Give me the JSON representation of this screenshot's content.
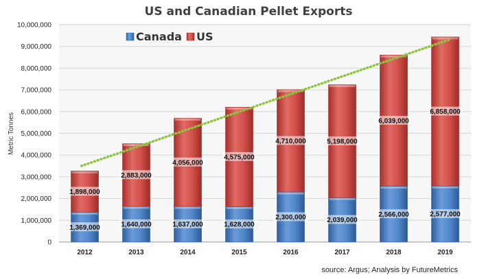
{
  "chart_data": {
    "type": "bar",
    "stacked": true,
    "title": "US and Canadian Pellet Exports",
    "ylabel": "Metric Tonnes",
    "xlabel": "",
    "categories": [
      "2012",
      "2013",
      "2014",
      "2015",
      "2016",
      "2017",
      "2018",
      "2019"
    ],
    "series": [
      {
        "name": "Canada",
        "color": "#4a7fc1",
        "values": [
          1369000,
          1640000,
          1637000,
          1628000,
          2300000,
          2039000,
          2566000,
          2577000
        ],
        "labels": [
          "1,369,000",
          "1,640,000",
          "1,637,000",
          "1,628,000",
          "2,300,000",
          "2,039,000",
          "2,566,000",
          "2,577,000"
        ]
      },
      {
        "name": "US",
        "color": "#c9443f",
        "values": [
          1898000,
          2883000,
          4056000,
          4575000,
          4710000,
          5198000,
          6039000,
          6858000
        ],
        "labels": [
          "1,898,000",
          "2,883,000",
          "4,056,000",
          "4,575,000",
          "4,710,000",
          "5,198,000",
          "6,039,000",
          "6,858,000"
        ]
      }
    ],
    "trendline": {
      "style": "dotted",
      "color": "#8cc63f",
      "start": 3500000,
      "end": 9300000
    },
    "ylim": [
      0,
      10000000
    ],
    "yticks": [
      "0",
      "1,000,000",
      "2,000,000",
      "3,000,000",
      "4,000,000",
      "5,000,000",
      "6,000,000",
      "7,000,000",
      "8,000,000",
      "9,000,000",
      "10,000,000"
    ],
    "grid": true,
    "legend_position": "top-left",
    "source_note": "source: Argus; Analysis by FutureMetrics"
  }
}
